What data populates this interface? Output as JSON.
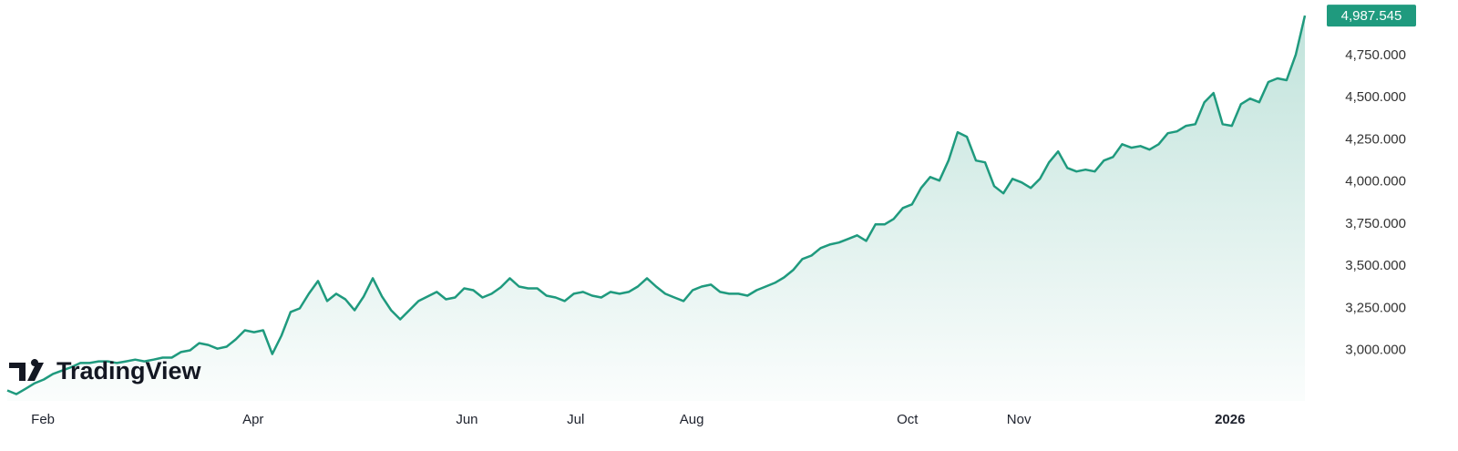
{
  "chart_data": {
    "type": "line",
    "color": "#1f9a7e",
    "values": [
      2762,
      2740,
      2772,
      2805,
      2827,
      2860,
      2880,
      2900,
      2925,
      2925,
      2935,
      2935,
      2925,
      2935,
      2945,
      2935,
      2945,
      2957,
      2957,
      2990,
      3000,
      3043,
      3032,
      3010,
      3022,
      3065,
      3119,
      3108,
      3119,
      2978,
      3087,
      3228,
      3249,
      3336,
      3412,
      3293,
      3336,
      3303,
      3238,
      3320,
      3428,
      3320,
      3238,
      3184,
      3238,
      3293,
      3320,
      3347,
      3303,
      3314,
      3368,
      3357,
      3314,
      3336,
      3374,
      3428,
      3379,
      3368,
      3368,
      3325,
      3314,
      3293,
      3336,
      3347,
      3325,
      3314,
      3347,
      3336,
      3347,
      3379,
      3428,
      3379,
      3336,
      3314,
      3293,
      3357,
      3379,
      3390,
      3347,
      3336,
      3336,
      3325,
      3357,
      3379,
      3401,
      3433,
      3477,
      3542,
      3563,
      3607,
      3628,
      3640,
      3661,
      3683,
      3650,
      3748,
      3748,
      3780,
      3845,
      3867,
      3964,
      4029,
      4008,
      4127,
      4295,
      4268,
      4127,
      4116,
      3975,
      3932,
      4018,
      3997,
      3964,
      4018,
      4116,
      4181,
      4083,
      4062,
      4073,
      4062,
      4127,
      4148,
      4224,
      4203,
      4213,
      4192,
      4224,
      4289,
      4300,
      4333,
      4343,
      4473,
      4528,
      4343,
      4333,
      4462,
      4495,
      4473,
      4593,
      4615,
      4604,
      4756,
      4987.545
    ],
    "xlim": [
      0,
      142
    ],
    "xticks": [
      {
        "value": 3.9,
        "label": "Feb"
      },
      {
        "value": 26.9,
        "label": "Apr"
      },
      {
        "value": 50.3,
        "label": "Jun"
      },
      {
        "value": 62.2,
        "label": "Jul"
      },
      {
        "value": 74.9,
        "label": "Aug"
      },
      {
        "value": 98.5,
        "label": "Oct"
      },
      {
        "value": 110.7,
        "label": "Nov"
      },
      {
        "value": 133.8,
        "label": "2026",
        "bold": true
      }
    ],
    "ylim": [
      2700,
      5080
    ],
    "yticks": [
      {
        "value": 3000,
        "label": "3,000.000"
      },
      {
        "value": 3250,
        "label": "3,250.000"
      },
      {
        "value": 3500,
        "label": "3,500.000"
      },
      {
        "value": 3750,
        "label": "3,750.000"
      },
      {
        "value": 4000,
        "label": "4,000.000"
      },
      {
        "value": 4250,
        "label": "4,250.000"
      },
      {
        "value": 4500,
        "label": "4,500.000"
      },
      {
        "value": 4750,
        "label": "4,750.000"
      }
    ],
    "last_price": {
      "value": 4987.545,
      "label": "4,987.545"
    },
    "logo": "TradingView"
  }
}
